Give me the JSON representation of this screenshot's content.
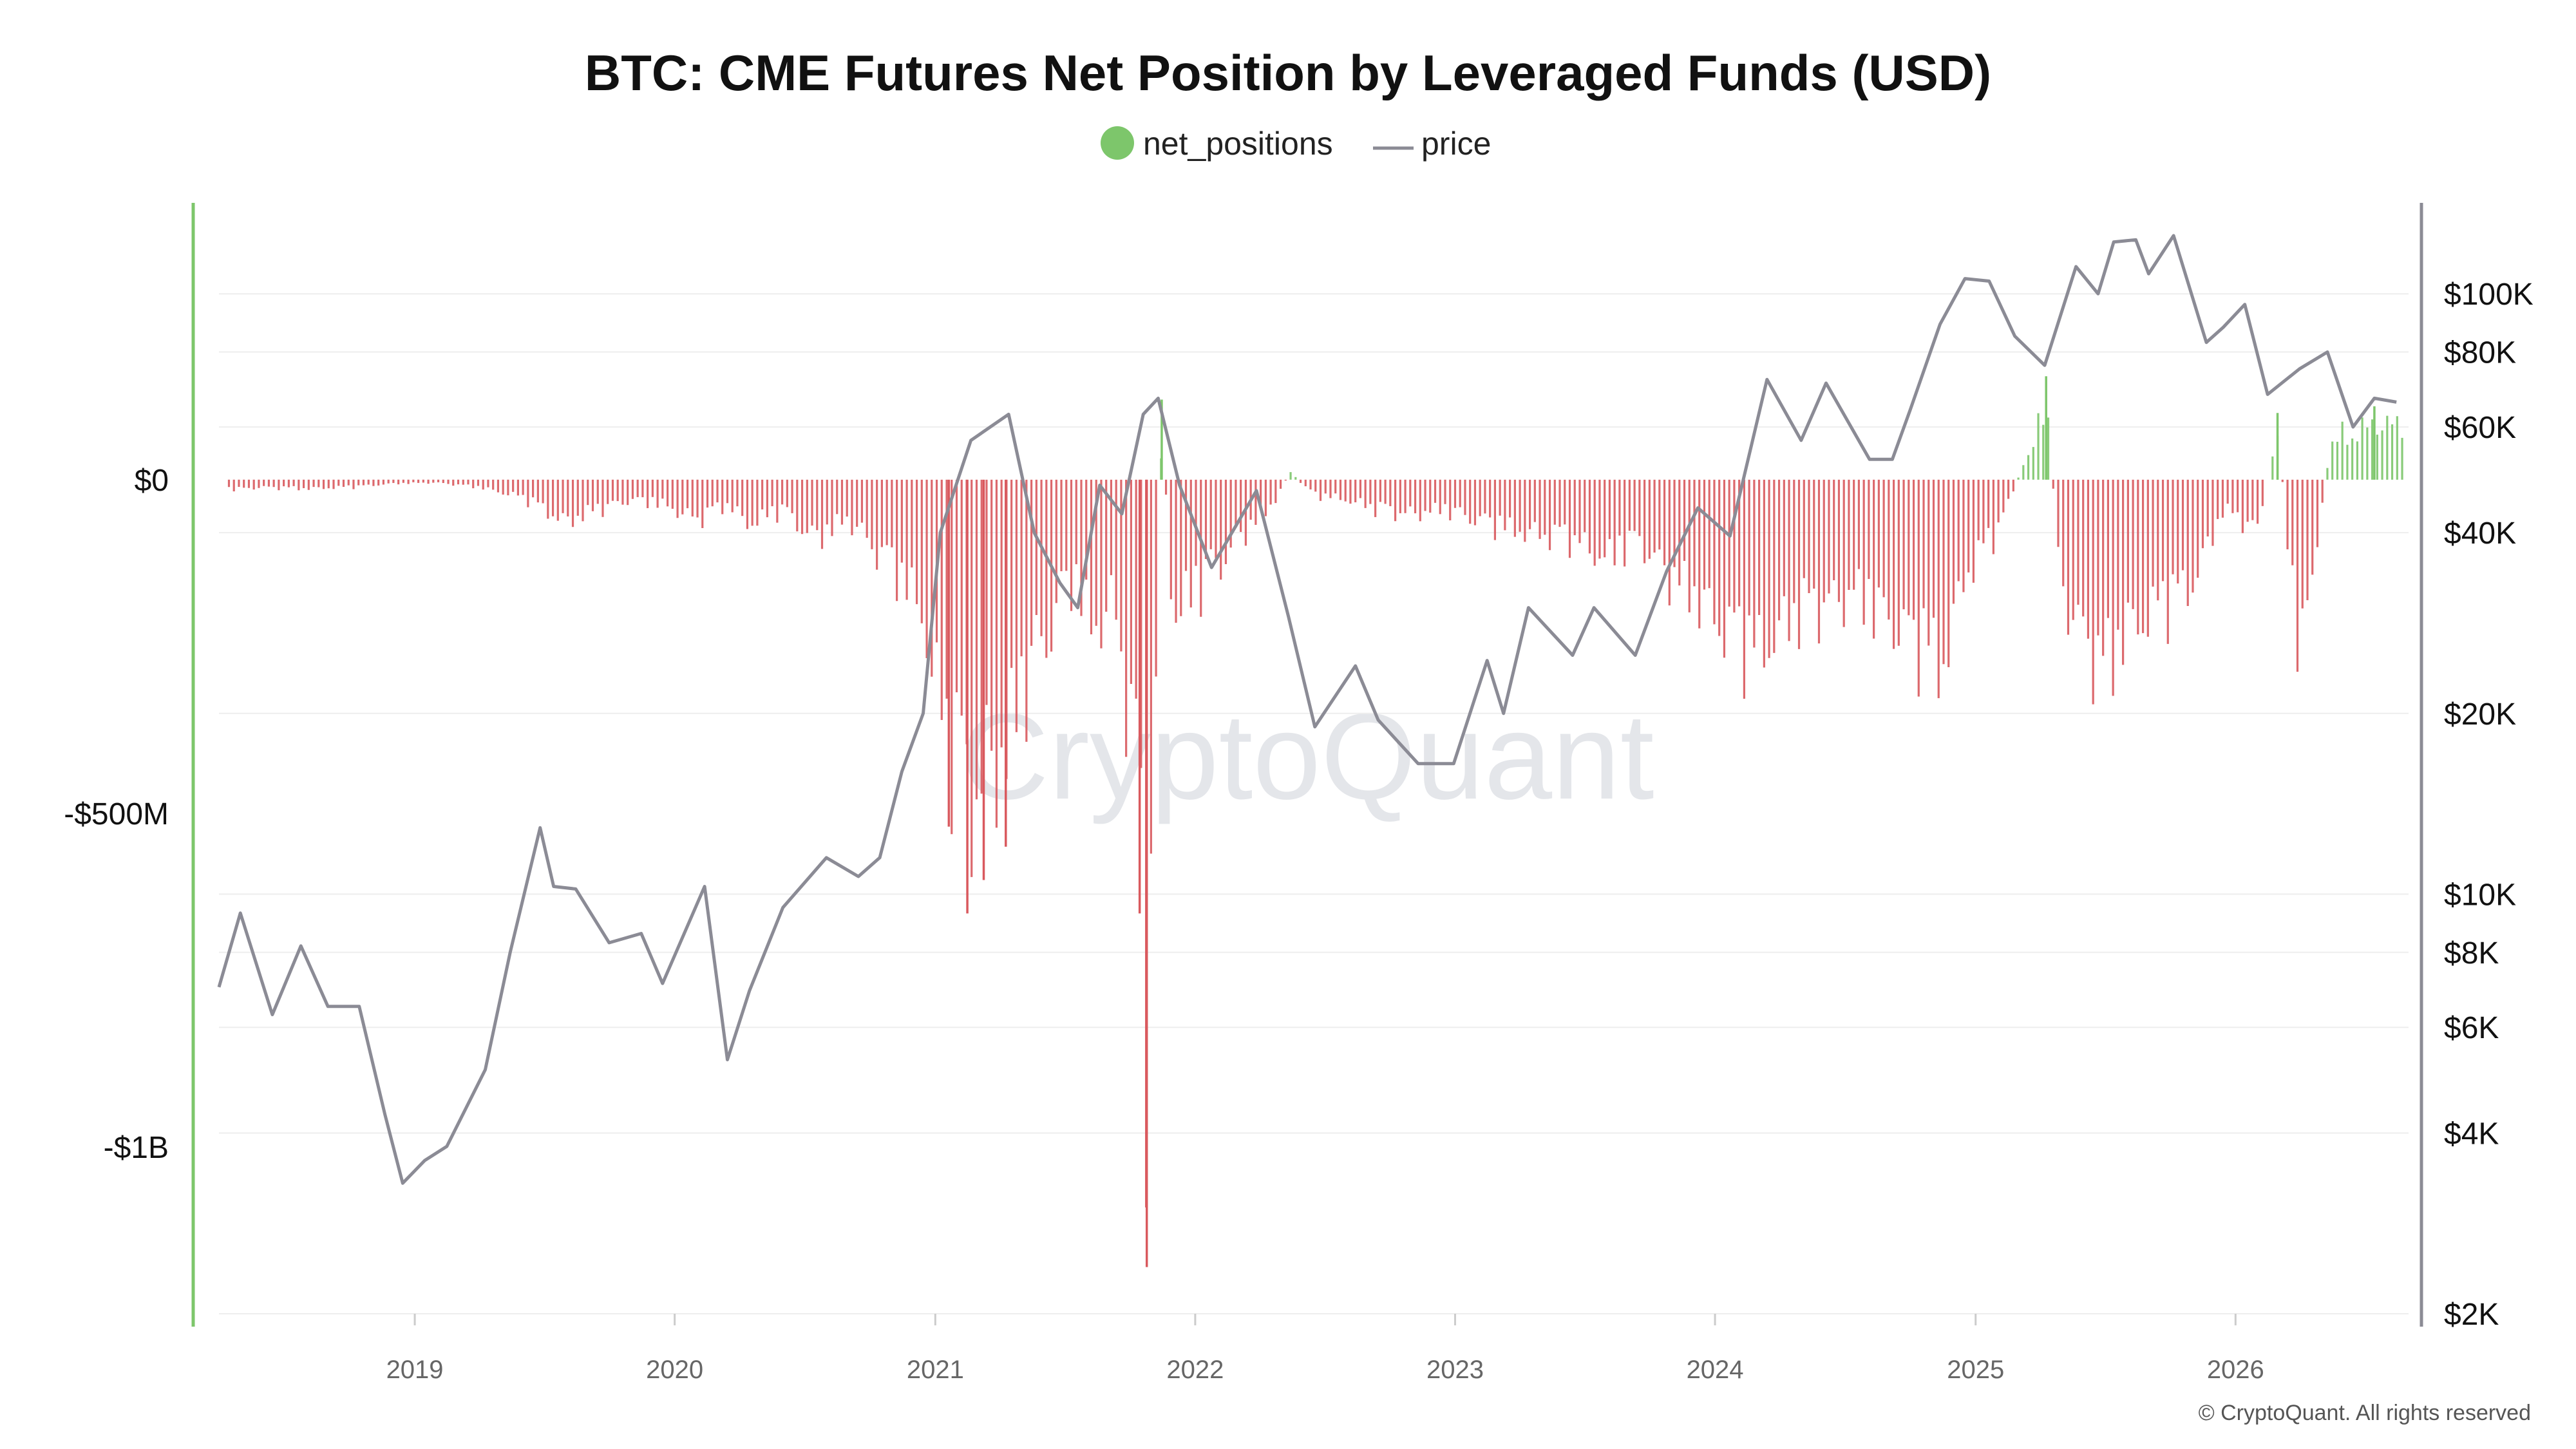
{
  "chart_data": {
    "type": "bar",
    "title": "BTC: CME Futures Net Position by Leveraged Funds (USD)",
    "legend": [
      {
        "name": "net_positions",
        "symbol": "dot",
        "color": "#7dc66b"
      },
      {
        "name": "price",
        "symbol": "line",
        "color": "#8b8b95"
      }
    ],
    "colors": {
      "positive": "#7dc66b",
      "negative": "#d9595e",
      "price": "#8b8b95",
      "left_axis": "#7dc66b",
      "right_axis": "#8b8b95"
    },
    "x_range": [
      "2018-04-01",
      "2026-09-01"
    ],
    "x_ticks": [
      "2019",
      "2020",
      "2021",
      "2022",
      "2023",
      "2024",
      "2025",
      "2026"
    ],
    "y_left": {
      "range": [
        -1250000000,
        410000000
      ],
      "scale": "linear",
      "ticks": [
        {
          "v": 0,
          "label": "$0"
        },
        {
          "v": -500000000,
          "label": "-$500M"
        },
        {
          "v": -1000000000,
          "label": "-$1B"
        }
      ]
    },
    "y_right": {
      "range": [
        2000,
        140000
      ],
      "scale": "log",
      "ticks": [
        {
          "v": 100000,
          "label": "$100K"
        },
        {
          "v": 80000,
          "label": "$80K"
        },
        {
          "v": 60000,
          "label": "$60K"
        },
        {
          "v": 40000,
          "label": "$40K"
        },
        {
          "v": 20000,
          "label": "$20K"
        },
        {
          "v": 10000,
          "label": "$10K"
        },
        {
          "v": 8000,
          "label": "$8K"
        },
        {
          "v": 6000,
          "label": "$6K"
        },
        {
          "v": 4000,
          "label": "$4K"
        },
        {
          "v": 2000,
          "label": "$2K"
        }
      ]
    },
    "grid": true,
    "series": [
      {
        "name": "net_positions",
        "points": [
          [
            "2018-04-15",
            -20000000
          ],
          [
            "2018-06-01",
            -15000000
          ],
          [
            "2018-08-01",
            -18000000
          ],
          [
            "2018-10-01",
            -15000000
          ],
          [
            "2018-12-01",
            -8000000
          ],
          [
            "2019-02-01",
            -6000000
          ],
          [
            "2019-04-01",
            -15000000
          ],
          [
            "2019-06-01",
            -35000000
          ],
          [
            "2019-08-01",
            -85000000
          ],
          [
            "2019-09-15",
            -60000000
          ],
          [
            "2019-11-01",
            -40000000
          ],
          [
            "2019-12-15",
            -50000000
          ],
          [
            "2020-02-01",
            -80000000
          ],
          [
            "2020-03-15",
            -50000000
          ],
          [
            "2020-04-15",
            -90000000
          ],
          [
            "2020-06-01",
            -60000000
          ],
          [
            "2020-07-15",
            -120000000
          ],
          [
            "2020-09-01",
            -80000000
          ],
          [
            "2020-10-15",
            -150000000
          ],
          [
            "2020-11-15",
            -200000000
          ],
          [
            "2020-12-15",
            -270000000
          ],
          [
            "2021-01-01",
            -420000000
          ],
          [
            "2021-01-20",
            -520000000
          ],
          [
            "2021-02-15",
            -650000000
          ],
          [
            "2021-03-10",
            -600000000
          ],
          [
            "2021-04-10",
            -550000000
          ],
          [
            "2021-05-10",
            -400000000
          ],
          [
            "2021-06-10",
            -300000000
          ],
          [
            "2021-07-10",
            -200000000
          ],
          [
            "2021-08-10",
            -300000000
          ],
          [
            "2021-09-10",
            -250000000
          ],
          [
            "2021-10-15",
            -650000000
          ],
          [
            "2021-10-25",
            -1180000000
          ],
          [
            "2021-11-15",
            120000000
          ],
          [
            "2021-12-01",
            -280000000
          ],
          [
            "2022-01-15",
            -200000000
          ],
          [
            "2022-02-15",
            -150000000
          ],
          [
            "2022-03-15",
            -100000000
          ],
          [
            "2022-04-15",
            -60000000
          ],
          [
            "2022-05-15",
            15000000
          ],
          [
            "2022-06-15",
            -30000000
          ],
          [
            "2022-08-01",
            -40000000
          ],
          [
            "2022-09-15",
            -60000000
          ],
          [
            "2022-11-01",
            -70000000
          ],
          [
            "2022-12-15",
            -60000000
          ],
          [
            "2023-02-01",
            -80000000
          ],
          [
            "2023-03-15",
            -100000000
          ],
          [
            "2023-05-01",
            -110000000
          ],
          [
            "2023-06-15",
            -120000000
          ],
          [
            "2023-08-01",
            -160000000
          ],
          [
            "2023-09-15",
            -120000000
          ],
          [
            "2023-11-01",
            -200000000
          ],
          [
            "2023-12-15",
            -250000000
          ],
          [
            "2024-01-15",
            -300000000
          ],
          [
            "2024-03-01",
            -350000000
          ],
          [
            "2024-04-15",
            -280000000
          ],
          [
            "2024-06-01",
            -250000000
          ],
          [
            "2024-07-15",
            -230000000
          ],
          [
            "2024-09-01",
            -280000000
          ],
          [
            "2024-10-15",
            -330000000
          ],
          [
            "2024-11-15",
            -380000000
          ],
          [
            "2024-12-15",
            -200000000
          ],
          [
            "2025-02-01",
            -100000000
          ],
          [
            "2025-03-15",
            50000000
          ],
          [
            "2025-04-10",
            155000000
          ],
          [
            "2025-05-01",
            -220000000
          ],
          [
            "2025-06-01",
            -310000000
          ],
          [
            "2025-07-01",
            -390000000
          ],
          [
            "2025-08-01",
            -300000000
          ],
          [
            "2025-09-15",
            -260000000
          ],
          [
            "2025-11-01",
            -210000000
          ],
          [
            "2025-12-15",
            -60000000
          ],
          [
            "2026-02-01",
            -100000000
          ],
          [
            "2026-03-01",
            100000000
          ],
          [
            "2026-04-01",
            -370000000
          ],
          [
            "2026-05-15",
            80000000
          ],
          [
            "2026-07-15",
            110000000
          ]
        ]
      },
      {
        "name": "price",
        "scale": "log",
        "points": [
          [
            "2018-04-01",
            7000
          ],
          [
            "2018-05-01",
            9300
          ],
          [
            "2018-06-15",
            6300
          ],
          [
            "2018-07-25",
            8200
          ],
          [
            "2018-09-01",
            6500
          ],
          [
            "2018-10-15",
            6500
          ],
          [
            "2018-11-20",
            4300
          ],
          [
            "2018-12-15",
            3300
          ],
          [
            "2019-01-15",
            3600
          ],
          [
            "2019-02-15",
            3800
          ],
          [
            "2019-04-10",
            5100
          ],
          [
            "2019-05-15",
            8000
          ],
          [
            "2019-06-26",
            12900
          ],
          [
            "2019-07-15",
            10300
          ],
          [
            "2019-08-15",
            10200
          ],
          [
            "2019-10-01",
            8300
          ],
          [
            "2019-11-15",
            8600
          ],
          [
            "2019-12-15",
            7100
          ],
          [
            "2020-02-12",
            10300
          ],
          [
            "2020-03-15",
            5300
          ],
          [
            "2020-04-15",
            6900
          ],
          [
            "2020-06-01",
            9500
          ],
          [
            "2020-08-01",
            11500
          ],
          [
            "2020-09-15",
            10700
          ],
          [
            "2020-10-15",
            11500
          ],
          [
            "2020-11-15",
            16000
          ],
          [
            "2020-12-15",
            20000
          ],
          [
            "2021-01-08",
            40000
          ],
          [
            "2021-02-20",
            57000
          ],
          [
            "2021-04-14",
            63000
          ],
          [
            "2021-05-20",
            40000
          ],
          [
            "2021-06-25",
            33000
          ],
          [
            "2021-07-20",
            30000
          ],
          [
            "2021-08-20",
            48000
          ],
          [
            "2021-09-20",
            43000
          ],
          [
            "2021-10-20",
            63000
          ],
          [
            "2021-11-10",
            67000
          ],
          [
            "2021-12-10",
            48000
          ],
          [
            "2022-01-24",
            35000
          ],
          [
            "2022-03-28",
            47000
          ],
          [
            "2022-05-12",
            29000
          ],
          [
            "2022-06-18",
            19000
          ],
          [
            "2022-08-14",
            24000
          ],
          [
            "2022-09-15",
            19500
          ],
          [
            "2022-11-10",
            16500
          ],
          [
            "2022-12-30",
            16500
          ],
          [
            "2023-02-15",
            24500
          ],
          [
            "2023-03-10",
            20000
          ],
          [
            "2023-04-14",
            30000
          ],
          [
            "2023-06-15",
            25000
          ],
          [
            "2023-07-15",
            30000
          ],
          [
            "2023-09-11",
            25000
          ],
          [
            "2023-10-25",
            34500
          ],
          [
            "2023-12-08",
            44000
          ],
          [
            "2024-01-22",
            39500
          ],
          [
            "2024-03-14",
            72000
          ],
          [
            "2024-05-01",
            57000
          ],
          [
            "2024-06-05",
            71000
          ],
          [
            "2024-08-05",
            53000
          ],
          [
            "2024-09-06",
            53000
          ],
          [
            "2024-10-01",
            64000
          ],
          [
            "2024-11-12",
            89000
          ],
          [
            "2024-12-17",
            106000
          ],
          [
            "2025-01-20",
            105000
          ],
          [
            "2025-02-25",
            85000
          ],
          [
            "2025-04-08",
            76000
          ],
          [
            "2025-05-22",
            111000
          ],
          [
            "2025-06-22",
            100000
          ],
          [
            "2025-07-14",
            122000
          ],
          [
            "2025-08-14",
            123000
          ],
          [
            "2025-09-01",
            108000
          ],
          [
            "2025-10-06",
            125000
          ],
          [
            "2025-11-21",
            83000
          ],
          [
            "2025-12-15",
            88000
          ],
          [
            "2026-01-14",
            96000
          ],
          [
            "2026-02-15",
            68000
          ],
          [
            "2026-04-01",
            75000
          ],
          [
            "2026-05-10",
            80000
          ],
          [
            "2026-06-15",
            60000
          ],
          [
            "2026-07-15",
            67000
          ],
          [
            "2026-08-15",
            66000
          ]
        ]
      }
    ]
  },
  "watermark": "CryptoQuant",
  "copyright": "© CryptoQuant. All rights reserved"
}
